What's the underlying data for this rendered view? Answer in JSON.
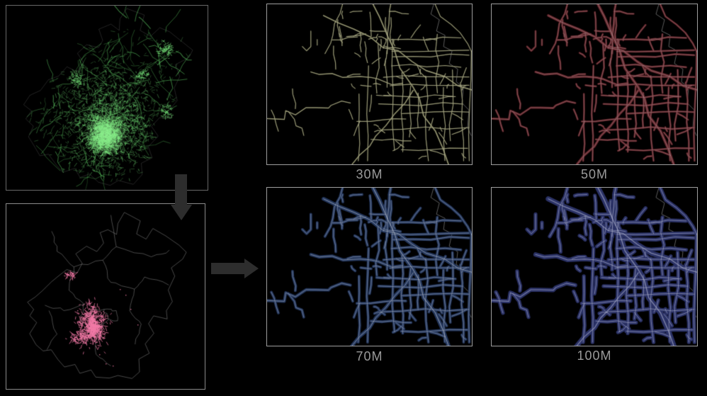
{
  "figure": {
    "background": "#000000",
    "arrow_color": "#2d2d2d",
    "label_color": "#9b9b9b",
    "full_network_map": {
      "network_color": "#79e87c",
      "rural_color": "#4f9e54",
      "boundary_color": "#9b9b9b",
      "border_color": "#686868"
    },
    "district_map": {
      "boundary_color": "#bdbdbd",
      "cluster_color": "#f279a6",
      "border_color": "#8a8a8a"
    },
    "resolution_panels": [
      {
        "label": "30M",
        "road_color": "#80805c",
        "core_color": "#c8c8ae",
        "stroke_width": 1.2
      },
      {
        "label": "50M",
        "road_color": "#64252b",
        "core_color": "#c4b6b6",
        "stroke_width": 2.6
      },
      {
        "label": "70M",
        "road_color": "#24375d",
        "core_color": "#bcc3cf",
        "stroke_width": 3.8
      },
      {
        "label": "100M",
        "road_color": "#2b3266",
        "core_color": "#a9aecb",
        "stroke_width": 5.2
      }
    ]
  }
}
